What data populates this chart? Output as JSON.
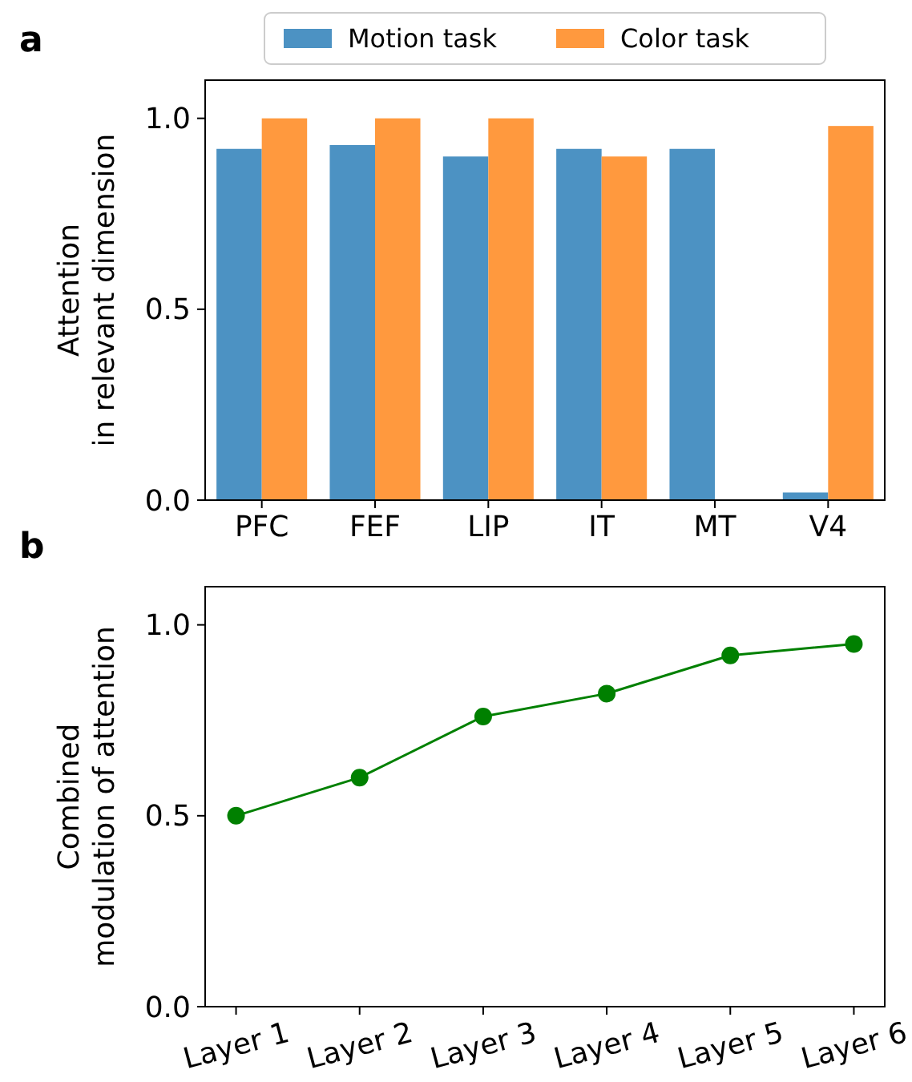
{
  "chart_data": [
    {
      "type": "bar",
      "annotations": [
        "a"
      ],
      "ylabel": "Attention\nin relevant dimension",
      "categories": [
        "PFC",
        "FEF",
        "LIP",
        "IT",
        "MT",
        "V4"
      ],
      "series": [
        {
          "name": "Motion task",
          "color": "#4c92c3",
          "values": [
            0.92,
            0.93,
            0.9,
            0.92,
            0.92,
            0.02
          ]
        },
        {
          "name": "Color task",
          "color": "#ff993e",
          "values": [
            1.0,
            1.0,
            1.0,
            0.9,
            0,
            0.98
          ]
        }
      ],
      "ylim": [
        0,
        1.1
      ],
      "yticks": [
        {
          "value": 0,
          "label": "0.0"
        },
        {
          "value": 0.5,
          "label": "0.5"
        },
        {
          "value": 1,
          "label": "1.0"
        }
      ],
      "legend": "top",
      "grid": false
    },
    {
      "type": "line",
      "annotations": [
        "b"
      ],
      "ylabel": "Combined\nmodulation of attention",
      "categories": [
        "Layer 1",
        "Layer 2",
        "Layer 3",
        "Layer 4",
        "Layer 5",
        "Layer 6"
      ],
      "series": [
        {
          "color": "#008000",
          "values": [
            0.5,
            0.6,
            0.76,
            0.82,
            0.92,
            0.95
          ]
        }
      ],
      "ylim": [
        0,
        1.1
      ],
      "yticks": [
        {
          "value": 0,
          "label": "0.0"
        },
        {
          "value": 0.5,
          "label": "0.5"
        },
        {
          "value": 1,
          "label": "1.0"
        }
      ],
      "marker": "circle",
      "grid": false
    }
  ]
}
